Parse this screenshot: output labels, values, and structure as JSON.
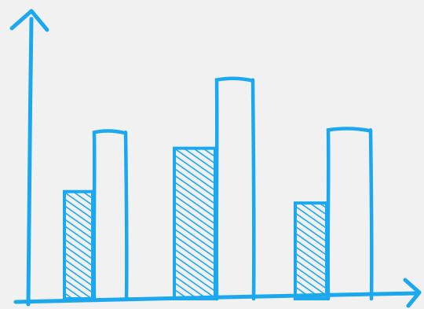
{
  "chart_data": {
    "type": "bar",
    "style": "hand-drawn sketch",
    "categories": [
      "",
      "",
      ""
    ],
    "series": [
      {
        "fill": "hatched",
        "values": [
          0.47,
          0.66,
          0.42
        ]
      },
      {
        "fill": "outline",
        "values": [
          0.73,
          0.96,
          0.74
        ]
      }
    ],
    "ylim": [
      0,
      1
    ],
    "title": "",
    "xlabel": "",
    "ylabel": "",
    "grid": false,
    "legend": "none",
    "colors": {
      "stroke": "#1ba8ee",
      "background": "#f1f1f1"
    }
  }
}
